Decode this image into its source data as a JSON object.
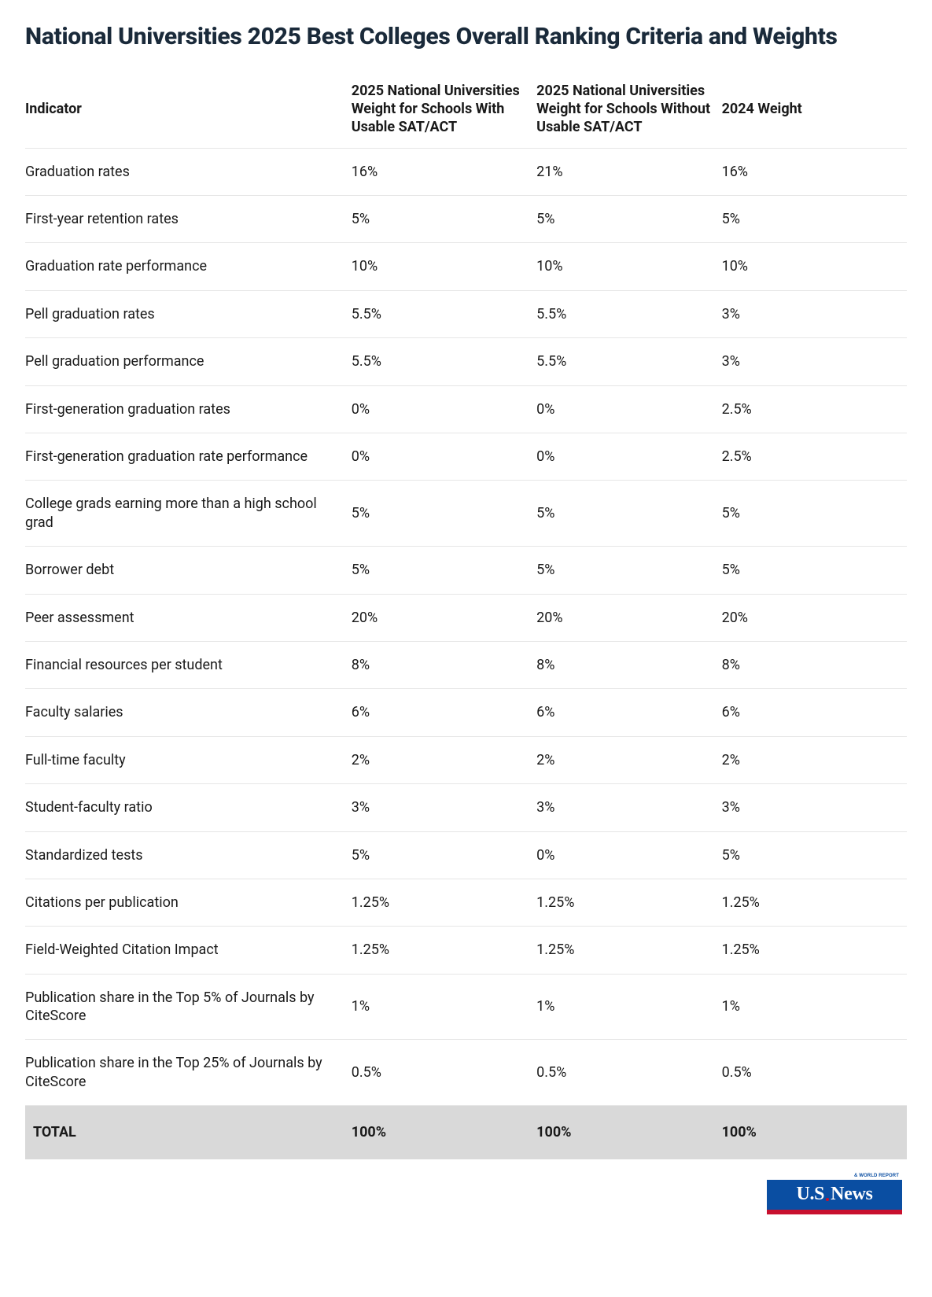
{
  "title": "National Universities 2025 Best Colleges Overall Ranking Criteria and Weights",
  "table": {
    "type": "table",
    "columns": [
      "Indicator",
      "2025 National Universities Weight for Schools With Usable SAT/ACT",
      "2025 National Universities Weight for Schools Without Usable SAT/ACT",
      "2024 Weight"
    ],
    "rows": [
      {
        "indicator": "Graduation rates",
        "w_with": "16%",
        "w_without": "21%",
        "w_2024": "16%"
      },
      {
        "indicator": "First-year retention rates",
        "w_with": "5%",
        "w_without": "5%",
        "w_2024": "5%"
      },
      {
        "indicator": "Graduation rate performance",
        "w_with": "10%",
        "w_without": "10%",
        "w_2024": "10%"
      },
      {
        "indicator": "Pell graduation rates",
        "w_with": "5.5%",
        "w_without": "5.5%",
        "w_2024": "3%"
      },
      {
        "indicator": "Pell graduation performance",
        "w_with": "5.5%",
        "w_without": "5.5%",
        "w_2024": "3%"
      },
      {
        "indicator": "First-generation graduation rates",
        "w_with": "0%",
        "w_without": "0%",
        "w_2024": "2.5%"
      },
      {
        "indicator": "First-generation graduation rate performance",
        "w_with": "0%",
        "w_without": "0%",
        "w_2024": "2.5%"
      },
      {
        "indicator": "College grads earning more than a high school grad",
        "w_with": "5%",
        "w_without": "5%",
        "w_2024": "5%"
      },
      {
        "indicator": "Borrower debt",
        "w_with": "5%",
        "w_without": "5%",
        "w_2024": "5%"
      },
      {
        "indicator": "Peer assessment",
        "w_with": "20%",
        "w_without": "20%",
        "w_2024": "20%"
      },
      {
        "indicator": "Financial resources per student",
        "w_with": "8%",
        "w_without": "8%",
        "w_2024": "8%"
      },
      {
        "indicator": "Faculty salaries",
        "w_with": "6%",
        "w_without": "6%",
        "w_2024": "6%"
      },
      {
        "indicator": "Full-time faculty",
        "w_with": "2%",
        "w_without": "2%",
        "w_2024": "2%"
      },
      {
        "indicator": "Student-faculty ratio",
        "w_with": "3%",
        "w_without": "3%",
        "w_2024": "3%"
      },
      {
        "indicator": "Standardized tests",
        "w_with": "5%",
        "w_without": "0%",
        "w_2024": "5%"
      },
      {
        "indicator": "Citations per publication",
        "w_with": "1.25%",
        "w_without": "1.25%",
        "w_2024": "1.25%"
      },
      {
        "indicator": "Field-Weighted Citation Impact",
        "w_with": "1.25%",
        "w_without": "1.25%",
        "w_2024": "1.25%"
      },
      {
        "indicator": "Publication share in the Top 5% of Journals by CiteScore",
        "w_with": "1%",
        "w_without": "1%",
        "w_2024": "1%"
      },
      {
        "indicator": "Publication share in the Top 25% of Journals by CiteScore",
        "w_with": "0.5%",
        "w_without": "0.5%",
        "w_2024": "0.5%"
      }
    ],
    "total": {
      "label": "TOTAL",
      "w_with": "100%",
      "w_without": "100%",
      "w_2024": "100%"
    },
    "styling": {
      "header_fontsize": 18,
      "header_fontweight": 700,
      "body_fontsize": 18,
      "body_fontweight": 400,
      "row_border_color": "#e6e6e6",
      "total_row_background": "#d9d9d9",
      "total_fontweight": 700,
      "background_color": "#ffffff",
      "text_color": "#1a1a1a"
    }
  },
  "logo": {
    "brand": "U.S.News",
    "tagline": "& WORLD REPORT",
    "colors": {
      "blue": "#0a4ea2",
      "red": "#c8102e",
      "white": "#ffffff"
    }
  }
}
